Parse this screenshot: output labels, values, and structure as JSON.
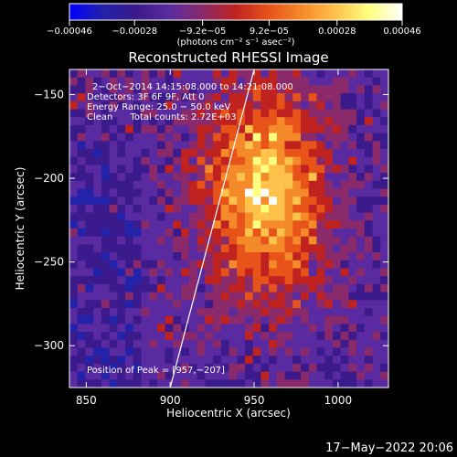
{
  "chart_data": {
    "type": "heatmap",
    "title": "Reconstructed RHESSI Image",
    "xlabel": "Heliocentric X (arcsec)",
    "ylabel": "Heliocentric Y (arcsec)",
    "xlim": [
      840,
      1030
    ],
    "ylim": [
      -325,
      -135
    ],
    "x_ticks": [
      850,
      900,
      950,
      1000
    ],
    "x_tick_labels": [
      "850",
      "900",
      "950",
      "1000"
    ],
    "y_ticks": [
      -150,
      -200,
      -250,
      -300
    ],
    "y_tick_labels": [
      "−150",
      "−200",
      "−250",
      "−300"
    ],
    "colorbar": {
      "range": [
        -0.00046,
        0.00046
      ],
      "ticks": [
        -0.00046,
        -0.00028,
        -9.2e-05,
        9.2e-05,
        0.00028,
        0.00046
      ],
      "tick_labels": [
        "−0.00046",
        "−0.00028",
        "−9.2e−05",
        "9.2e−05",
        "0.00028",
        "0.00046"
      ],
      "units_label": "(photons cm⁻² s⁻¹ asec⁻²)"
    },
    "annotations": [
      "2−Oct−2014 14:15:08.000 to 14:21:08.000",
      "Detectors: 3F 6F 9F, Att 0",
      "Energy Range: 25.0 − 50.0 keV",
      "Clean      Total counts: 2.72E+03"
    ],
    "peak_label": "Position of Peak = [957,−207]",
    "limb_points": [
      [
        900,
        -325
      ],
      [
        950,
        -135
      ]
    ],
    "peak": [
      957,
      -207
    ],
    "colors": {
      "background": "#000000",
      "axes": "#ffffff",
      "limb": "#ffffff",
      "colormap": [
        "#0000ff",
        "#2222aa",
        "#3b1a8c",
        "#5a2aa0",
        "#8a2a6a",
        "#c0231f",
        "#e8531a",
        "#f58a2a",
        "#ffc24a",
        "#ffff80",
        "#ffffff"
      ]
    }
  },
  "footer": {
    "timestamp": "17−May−2022 20:06"
  }
}
